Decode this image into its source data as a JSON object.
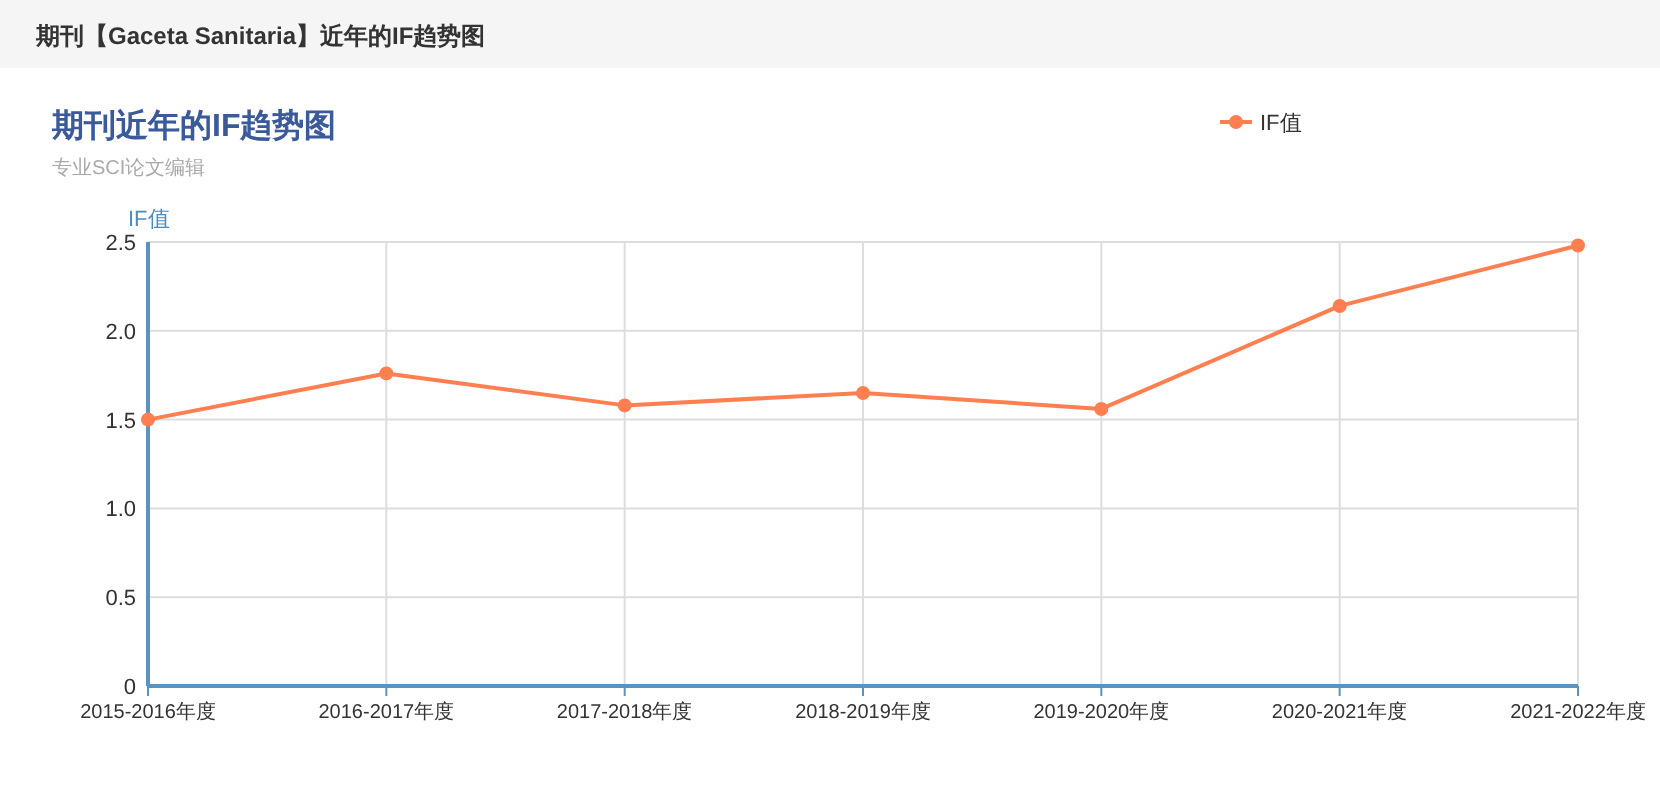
{
  "chart_data": {
    "type": "line",
    "title": "期刊近年的IF趋势图",
    "subtitle": "专业SCI论文编辑",
    "annotations": [
      "期刊【Gaceta Sanitaria】近年的IF趋势图"
    ],
    "ylabel": "IF值",
    "categories": [
      "2015-2016年度",
      "2016-2017年度",
      "2017-2018年度",
      "2018-2019年度",
      "2019-2020年度",
      "2020-2021年度",
      "2021-2022年度"
    ],
    "series": [
      {
        "name": "IF值",
        "color": "#ff7f50",
        "values": [
          1.5,
          1.76,
          1.58,
          1.65,
          1.56,
          2.14,
          2.48
        ]
      }
    ],
    "ylim": [
      0,
      2.5
    ],
    "yticks": [
      0,
      0.5,
      {
        "value": 1,
        "label": "1.0"
      },
      1.5,
      {
        "value": 2,
        "label": "2.0"
      },
      2.5
    ],
    "grid": true,
    "legend": "top right",
    "marker": "circle"
  }
}
